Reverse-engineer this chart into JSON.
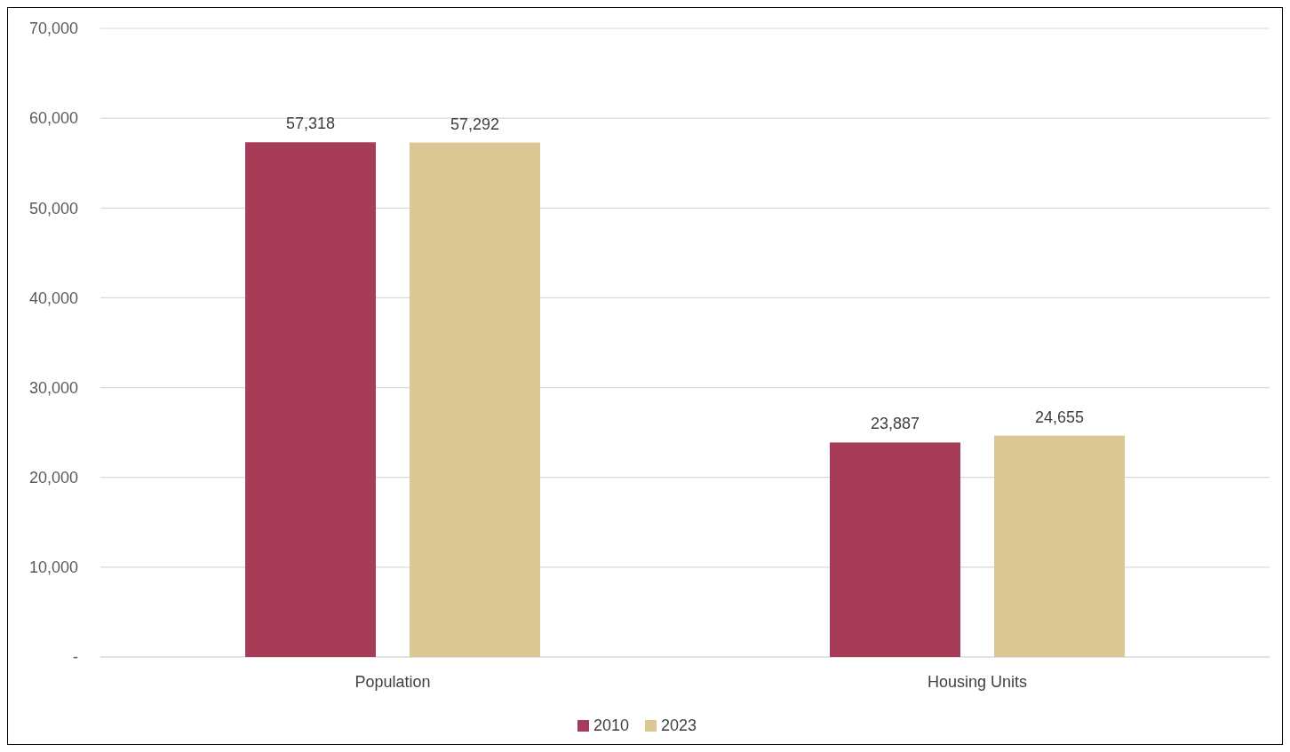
{
  "chart_data": {
    "type": "bar",
    "categories": [
      "Population",
      "Housing Units"
    ],
    "series": [
      {
        "name": "2010",
        "color": "#a63c58",
        "values": [
          57318,
          23887
        ],
        "value_labels": [
          "57,318",
          "23,887"
        ]
      },
      {
        "name": "2023",
        "color": "#dbc794",
        "values": [
          57292,
          24655
        ],
        "value_labels": [
          "57,292",
          "24,655"
        ]
      }
    ],
    "ylim": [
      0,
      70000
    ],
    "yticks": [
      {
        "value": 0,
        "label": "-"
      },
      {
        "value": 10000,
        "label": "10,000"
      },
      {
        "value": 20000,
        "label": "20,000"
      },
      {
        "value": 30000,
        "label": "30,000"
      },
      {
        "value": 40000,
        "label": "40,000"
      },
      {
        "value": 50000,
        "label": "50,000"
      },
      {
        "value": 60000,
        "label": "60,000"
      },
      {
        "value": 70000,
        "label": "70,000"
      }
    ],
    "grid": "y",
    "legend": "bottom"
  }
}
